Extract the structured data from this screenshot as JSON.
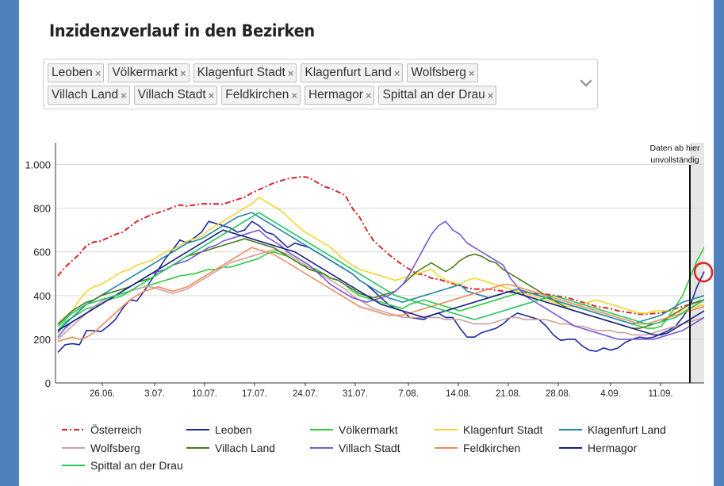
{
  "title": "Inzidenzverlauf in den Bezirken",
  "selector": {
    "tags": [
      "Leoben",
      "Völkermarkt",
      "Klagenfurt Stadt",
      "Klagenfurt Land",
      "Wolfsberg",
      "Villach Land",
      "Villach Stadt",
      "Feldkirchen",
      "Hermagor",
      "Spittal an der Drau"
    ],
    "remove_symbol": "×",
    "dropdown_icon": "chevron-down-icon"
  },
  "annotation": {
    "line1": "Daten ab hier",
    "line2": "unvollständig"
  },
  "colors": {
    "highlight_circle": "#e0201b",
    "grid": "#d9d9d9",
    "incomplete_band": "#e6e6e6"
  },
  "chart_data": {
    "type": "line",
    "x_tick_labels": [
      "26.06.",
      "3.07.",
      "10.07.",
      "17.07.",
      "24.07.",
      "31.07.",
      "7.08.",
      "14.08.",
      "21.08.",
      "28.08.",
      "4.09.",
      "11.09."
    ],
    "x_start": "20.06.",
    "x_end": "17.09.",
    "ylim": [
      0,
      1100
    ],
    "y_ticks": [
      0,
      200,
      400,
      600,
      800,
      1000
    ],
    "y_tick_labels": [
      "0",
      "200",
      "400",
      "600",
      "800",
      "1.000"
    ],
    "incomplete_from": "15.09.",
    "series": [
      {
        "name": "Österreich",
        "color": "#d62728",
        "dash": true,
        "values": [
          490,
          530,
          560,
          590,
          630,
          645,
          650,
          665,
          680,
          690,
          715,
          740,
          755,
          770,
          780,
          790,
          805,
          815,
          810,
          815,
          820,
          820,
          820,
          818,
          830,
          840,
          850,
          870,
          885,
          900,
          915,
          925,
          935,
          940,
          945,
          940,
          920,
          900,
          890,
          875,
          860,
          800,
          760,
          700,
          650,
          620,
          590,
          565,
          540,
          520,
          500,
          495,
          480,
          475,
          465,
          455,
          445,
          435,
          430,
          430,
          430,
          425,
          420,
          415,
          415,
          412,
          410,
          408,
          405,
          402,
          395,
          390,
          380,
          370,
          360,
          350,
          345,
          340,
          330,
          325,
          320,
          315,
          315,
          318,
          320,
          330,
          340,
          350,
          360,
          370,
          380
        ]
      },
      {
        "name": "Leoben",
        "color": "#1f2a9c",
        "values": [
          140,
          175,
          180,
          175,
          240,
          240,
          235,
          260,
          290,
          340,
          380,
          375,
          420,
          470,
          520,
          570,
          610,
          655,
          640,
          665,
          690,
          740,
          730,
          720,
          710,
          690,
          700,
          740,
          720,
          690,
          680,
          650,
          620,
          640,
          630,
          620,
          600,
          580,
          560,
          540,
          520,
          500,
          470,
          450,
          420,
          390,
          360,
          340,
          330,
          300,
          295,
          290,
          310,
          320,
          300,
          300,
          250,
          210,
          210,
          230,
          240,
          250,
          270,
          300,
          320,
          310,
          300,
          290,
          260,
          220,
          195,
          200,
          200,
          170,
          150,
          145,
          160,
          150,
          160,
          185,
          200,
          210,
          205,
          210,
          225,
          240,
          260,
          300,
          350,
          440,
          510
        ]
      },
      {
        "name": "Völkermarkt",
        "color": "#2ecc40",
        "values": [
          240,
          280,
          300,
          320,
          340,
          350,
          360,
          380,
          390,
          400,
          420,
          430,
          440,
          450,
          460,
          470,
          480,
          490,
          495,
          500,
          510,
          520,
          520,
          530,
          530,
          540,
          550,
          560,
          570,
          590,
          600,
          590,
          580,
          560,
          540,
          530,
          520,
          500,
          480,
          470,
          450,
          420,
          400,
          390,
          380,
          370,
          360,
          350,
          340,
          360,
          370,
          380,
          370,
          360,
          350,
          340,
          330,
          340,
          350,
          360,
          370,
          380,
          390,
          400,
          410,
          420,
          410,
          400,
          390,
          380,
          370,
          360,
          350,
          340,
          330,
          320,
          310,
          300,
          290,
          280,
          270,
          260,
          250,
          250,
          260,
          300,
          350,
          400,
          480,
          560,
          620
        ]
      },
      {
        "name": "Klagenfurt Stadt",
        "color": "#f0d730",
        "values": [
          260,
          300,
          330,
          380,
          420,
          440,
          450,
          470,
          490,
          510,
          520,
          540,
          550,
          560,
          580,
          600,
          610,
          630,
          650,
          660,
          670,
          700,
          720,
          740,
          760,
          780,
          800,
          820,
          850,
          830,
          810,
          790,
          760,
          730,
          700,
          680,
          660,
          640,
          620,
          590,
          560,
          540,
          520,
          510,
          500,
          490,
          480,
          470,
          480,
          490,
          500,
          510,
          520,
          490,
          470,
          460,
          450,
          470,
          480,
          470,
          460,
          450,
          440,
          430,
          420,
          410,
          400,
          390,
          380,
          370,
          360,
          350,
          350,
          360,
          370,
          380,
          370,
          360,
          350,
          340,
          330,
          320,
          320,
          330,
          330,
          330,
          320,
          330,
          340,
          350,
          360
        ]
      },
      {
        "name": "Klagenfurt Land",
        "color": "#2088a8",
        "values": [
          230,
          270,
          300,
          330,
          360,
          380,
          400,
          420,
          440,
          460,
          480,
          500,
          520,
          540,
          560,
          580,
          600,
          620,
          640,
          650,
          660,
          680,
          700,
          720,
          740,
          760,
          770,
          780,
          760,
          740,
          720,
          700,
          680,
          660,
          640,
          620,
          600,
          580,
          560,
          540,
          520,
          500,
          470,
          450,
          430,
          410,
          390,
          380,
          370,
          380,
          390,
          400,
          410,
          420,
          430,
          440,
          450,
          420,
          410,
          400,
          390,
          400,
          410,
          420,
          430,
          420,
          410,
          400,
          390,
          380,
          370,
          360,
          350,
          340,
          330,
          320,
          310,
          300,
          290,
          280,
          270,
          280,
          290,
          300,
          310,
          330,
          350,
          370,
          380,
          390,
          400
        ]
      },
      {
        "name": "Wolfsberg",
        "color": "#c9a3a0",
        "values": [
          200,
          230,
          260,
          290,
          320,
          350,
          370,
          390,
          400,
          410,
          420,
          430,
          440,
          440,
          430,
          420,
          410,
          420,
          430,
          450,
          470,
          490,
          510,
          530,
          550,
          560,
          570,
          580,
          590,
          600,
          610,
          600,
          590,
          570,
          550,
          530,
          510,
          490,
          470,
          450,
          430,
          400,
          380,
          360,
          340,
          330,
          320,
          310,
          300,
          300,
          300,
          300,
          300,
          300,
          290,
          290,
          290,
          280,
          270,
          270,
          270,
          280,
          290,
          300,
          300,
          290,
          290,
          290,
          290,
          280,
          270,
          270,
          260,
          260,
          250,
          240,
          240,
          240,
          230,
          230,
          220,
          220,
          220,
          230,
          240,
          250,
          260,
          270,
          280,
          290,
          300
        ]
      },
      {
        "name": "Villach Land",
        "color": "#4a7a1a",
        "values": [
          270,
          300,
          330,
          350,
          370,
          380,
          400,
          410,
          420,
          430,
          440,
          460,
          470,
          480,
          500,
          520,
          540,
          560,
          580,
          590,
          600,
          610,
          620,
          630,
          640,
          650,
          660,
          650,
          640,
          630,
          620,
          600,
          580,
          560,
          540,
          520,
          510,
          500,
          480,
          470,
          450,
          430,
          410,
          400,
          390,
          400,
          410,
          420,
          450,
          480,
          510,
          530,
          550,
          530,
          510,
          530,
          560,
          580,
          590,
          580,
          560,
          550,
          520,
          500,
          480,
          460,
          440,
          420,
          400,
          380,
          360,
          340,
          330,
          320,
          310,
          300,
          290,
          280,
          270,
          260,
          250,
          250,
          260,
          270,
          280,
          300,
          320,
          340,
          360,
          370,
          380
        ]
      },
      {
        "name": "Villach Stadt",
        "color": "#7856d6",
        "values": [
          210,
          250,
          280,
          300,
          320,
          340,
          360,
          380,
          400,
          420,
          440,
          460,
          480,
          500,
          510,
          520,
          540,
          550,
          560,
          580,
          600,
          620,
          630,
          650,
          660,
          670,
          680,
          690,
          700,
          670,
          650,
          630,
          600,
          580,
          560,
          540,
          510,
          480,
          450,
          430,
          410,
          390,
          380,
          370,
          380,
          390,
          400,
          420,
          450,
          500,
          560,
          620,
          680,
          720,
          740,
          700,
          680,
          640,
          620,
          600,
          580,
          560,
          540,
          480,
          440,
          400,
          380,
          360,
          340,
          320,
          300,
          280,
          260,
          250,
          240,
          230,
          220,
          210,
          200,
          200,
          200,
          200,
          200,
          200,
          210,
          220,
          230,
          240,
          260,
          280,
          300
        ]
      },
      {
        "name": "Feldkirchen",
        "color": "#ef8a5c",
        "values": [
          190,
          200,
          210,
          200,
          210,
          230,
          260,
          290,
          320,
          350,
          380,
          400,
          420,
          430,
          440,
          430,
          420,
          430,
          440,
          460,
          480,
          500,
          520,
          540,
          560,
          580,
          600,
          620,
          610,
          600,
          590,
          570,
          550,
          530,
          510,
          490,
          470,
          450,
          430,
          410,
          390,
          370,
          350,
          340,
          330,
          320,
          310,
          310,
          310,
          320,
          330,
          340,
          350,
          360,
          370,
          380,
          390,
          400,
          410,
          420,
          430,
          440,
          450,
          450,
          440,
          430,
          420,
          410,
          400,
          390,
          380,
          370,
          360,
          350,
          340,
          330,
          320,
          310,
          300,
          290,
          280,
          270,
          270,
          280,
          290,
          300,
          310,
          320,
          330,
          340,
          350
        ]
      },
      {
        "name": "Hermagor",
        "color": "#1a2080",
        "values": [
          240,
          260,
          280,
          300,
          320,
          340,
          360,
          380,
          400,
          420,
          440,
          460,
          480,
          500,
          520,
          540,
          560,
          580,
          600,
          620,
          640,
          660,
          680,
          700,
          690,
          680,
          670,
          660,
          650,
          640,
          630,
          620,
          610,
          600,
          580,
          560,
          540,
          520,
          500,
          480,
          460,
          440,
          420,
          400,
          380,
          360,
          350,
          340,
          330,
          320,
          310,
          300,
          310,
          320,
          330,
          340,
          350,
          360,
          370,
          380,
          390,
          400,
          410,
          420,
          410,
          400,
          390,
          380,
          370,
          360,
          350,
          340,
          330,
          320,
          310,
          300,
          290,
          280,
          270,
          260,
          250,
          240,
          230,
          220,
          220,
          230,
          250,
          270,
          290,
          310,
          330
        ]
      },
      {
        "name": "Spittal an der Drau",
        "color": "#22c55e",
        "values": [
          260,
          290,
          320,
          340,
          360,
          370,
          380,
          390,
          400,
          410,
          420,
          440,
          460,
          480,
          500,
          520,
          540,
          560,
          580,
          600,
          620,
          640,
          660,
          680,
          700,
          720,
          740,
          760,
          780,
          760,
          740,
          720,
          700,
          680,
          660,
          640,
          620,
          600,
          580,
          560,
          540,
          520,
          500,
          480,
          460,
          440,
          420,
          400,
          390,
          380,
          370,
          360,
          350,
          340,
          330,
          320,
          310,
          300,
          290,
          300,
          310,
          320,
          330,
          340,
          350,
          360,
          370,
          380,
          390,
          400,
          390,
          380,
          370,
          360,
          350,
          340,
          330,
          320,
          310,
          300,
          290,
          280,
          270,
          270,
          280,
          290,
          300,
          320,
          340,
          360,
          380
        ]
      }
    ]
  }
}
